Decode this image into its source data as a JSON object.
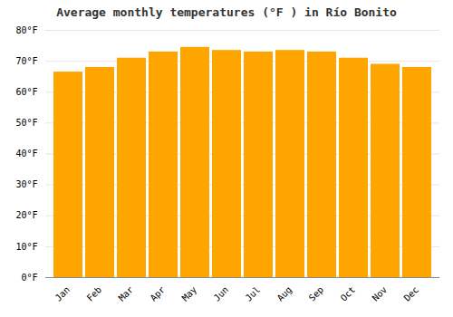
{
  "chart_data": {
    "type": "bar",
    "title": "Average monthly temperatures (°F ) in Río Bonito",
    "categories": [
      "Jan",
      "Feb",
      "Mar",
      "Apr",
      "May",
      "Jun",
      "Jul",
      "Aug",
      "Sep",
      "Oct",
      "Nov",
      "Dec"
    ],
    "values": [
      66.5,
      68.0,
      71.0,
      73.0,
      74.5,
      73.5,
      73.0,
      73.5,
      73.0,
      71.0,
      69.0,
      68.0
    ],
    "color": "#FFA500",
    "ylim": [
      0,
      80
    ],
    "yticks": [
      {
        "value": 0,
        "label": "0°F"
      },
      {
        "value": 10,
        "label": "10°F"
      },
      {
        "value": 20,
        "label": "20°F"
      },
      {
        "value": 30,
        "label": "30°F"
      },
      {
        "value": 40,
        "label": "40°F"
      },
      {
        "value": 50,
        "label": "50°F"
      },
      {
        "value": 60,
        "label": "60°F"
      },
      {
        "value": 70,
        "label": "70°F"
      },
      {
        "value": 80,
        "label": "80°F"
      }
    ],
    "grid": true
  }
}
